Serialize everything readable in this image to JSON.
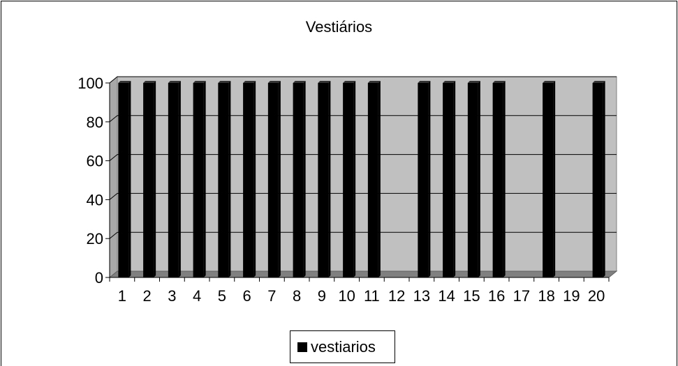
{
  "chart_data": {
    "type": "bar",
    "title": "Vestiários",
    "categories": [
      "1",
      "2",
      "3",
      "4",
      "5",
      "6",
      "7",
      "8",
      "9",
      "10",
      "11",
      "12",
      "13",
      "14",
      "15",
      "16",
      "17",
      "18",
      "19",
      "20"
    ],
    "series": [
      {
        "name": "vestiarios",
        "values": [
          100,
          100,
          100,
          100,
          100,
          100,
          100,
          100,
          100,
          100,
          100,
          0,
          100,
          100,
          100,
          100,
          0,
          100,
          0,
          100
        ]
      }
    ],
    "xlabel": "",
    "ylabel": "",
    "ylim": [
      0,
      100
    ],
    "yticks": [
      0,
      20,
      40,
      60,
      80,
      100
    ],
    "grid": true,
    "legend_position": "bottom",
    "colors": {
      "bar": "#000000",
      "plot_background": "#c0c0c0",
      "floor": "#808080",
      "border": "#000000"
    }
  }
}
